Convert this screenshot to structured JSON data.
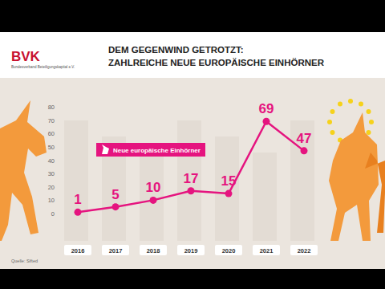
{
  "chart_data": {
    "type": "line",
    "title": "DEM GEGENWIND GETROTZT:\nZAHLREICHE NEUE EUROPÄISCHE EINHÖRNER",
    "logo": "BVK",
    "logo_subtitle": "Bundesverband Beteiligungskapital e.V.",
    "source": "Quelle: Sifted",
    "categories": [
      "2016",
      "2017",
      "2018",
      "2019",
      "2020",
      "2021",
      "2022"
    ],
    "series": [
      {
        "name": "Neue europäische Einhörner",
        "color": "#e5147f",
        "marker": "circle",
        "values": [
          1,
          5,
          10,
          17,
          15,
          69,
          47
        ]
      }
    ],
    "ylim": [
      0,
      80
    ],
    "yticks": [
      0,
      10,
      20,
      30,
      40,
      50,
      60,
      70,
      80
    ],
    "grid": false,
    "data_labels": true
  }
}
